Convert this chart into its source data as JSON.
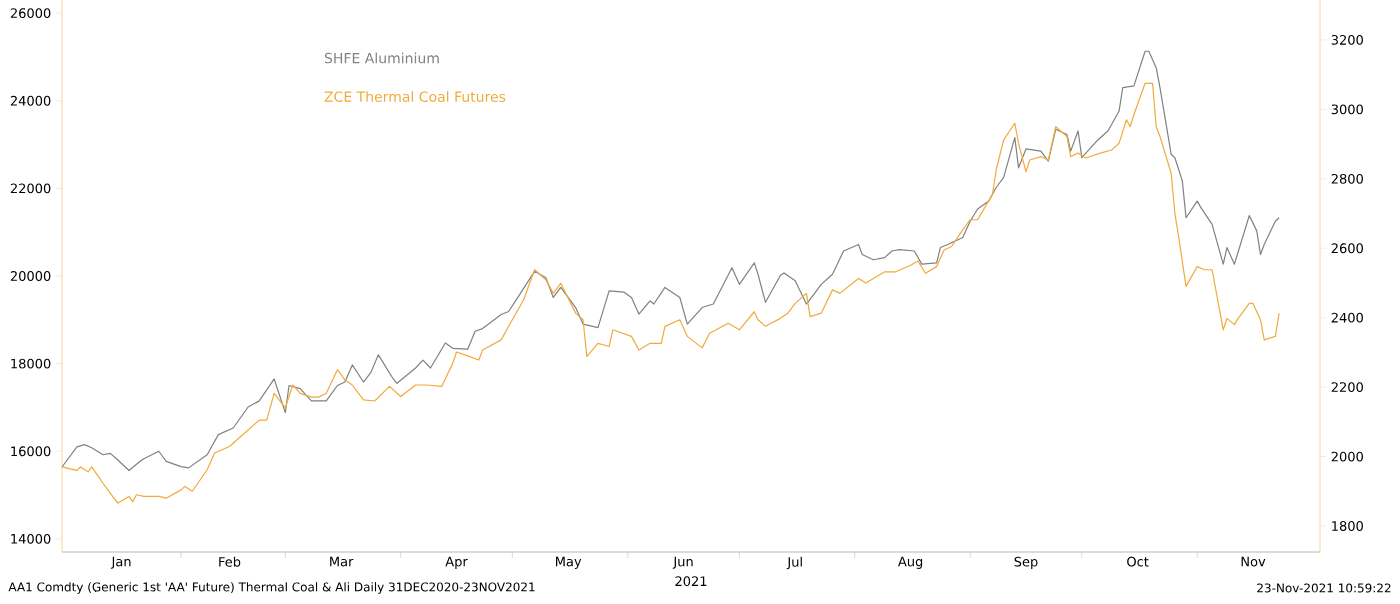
{
  "chart_data": {
    "type": "line",
    "xlabel": "2021",
    "annotations": [
      "AA1 Comdty (Generic 1st 'AA' Future) Thermal Coal & Ali  Daily 31DEC2020-23NOV2021",
      "23-Nov-2021 10:59:22"
    ],
    "legend": "top left",
    "marker": "none",
    "xlim": [
      "2020-12-31",
      "2021-12-04"
    ],
    "xticks": [
      {
        "value": "2021-01-16",
        "label": "Jan"
      },
      {
        "value": "2021-02-14",
        "label": "Feb"
      },
      {
        "value": "2021-03-16",
        "label": "Mar"
      },
      {
        "value": "2021-04-16",
        "label": "Apr"
      },
      {
        "value": "2021-05-16",
        "label": "May"
      },
      {
        "value": "2021-06-16",
        "label": "Jun"
      },
      {
        "value": "2021-07-16",
        "label": "Jul"
      },
      {
        "value": "2021-08-16",
        "label": "Aug"
      },
      {
        "value": "2021-09-16",
        "label": "Sep"
      },
      {
        "value": "2021-10-16",
        "label": "Oct"
      },
      {
        "value": "2021-11-16",
        "label": "Nov"
      },
      {
        "value": "2021-02-01",
        "label": null
      },
      {
        "value": "2021-03-01",
        "label": null
      },
      {
        "value": "2021-04-01",
        "label": null
      },
      {
        "value": "2021-05-01",
        "label": null
      },
      {
        "value": "2021-06-01",
        "label": null
      },
      {
        "value": "2021-07-01",
        "label": null
      },
      {
        "value": "2021-08-01",
        "label": null
      },
      {
        "value": "2021-09-01",
        "label": null
      },
      {
        "value": "2021-10-01",
        "label": null
      },
      {
        "value": "2021-11-01",
        "label": null
      }
    ],
    "ylim": [
      13700,
      26300
    ],
    "yticks": [
      14000,
      16000,
      18000,
      20000,
      22000,
      24000,
      26000
    ],
    "y2lim": [
      1725,
      3315
    ],
    "y2ticks": [
      1800,
      2000,
      2200,
      2400,
      2600,
      2800,
      3000,
      3200
    ],
    "series": [
      {
        "name": "SHFE Aluminium",
        "color": "#808080",
        "x": [
          "2020-12-31",
          "2021-01-04",
          "2021-01-06",
          "2021-01-08",
          "2021-01-11",
          "2021-01-13",
          "2021-01-15",
          "2021-01-18",
          "2021-01-21",
          "2021-01-22",
          "2021-01-26",
          "2021-01-28",
          "2021-02-01",
          "2021-02-03",
          "2021-02-08",
          "2021-02-11",
          "2021-02-15",
          "2021-02-19",
          "2021-02-22",
          "2021-02-26",
          "2021-03-01",
          "2021-03-02",
          "2021-03-05",
          "2021-03-08",
          "2021-03-09",
          "2021-03-12",
          "2021-03-15",
          "2021-03-17",
          "2021-03-19",
          "2021-03-22",
          "2021-03-24",
          "2021-03-26",
          "2021-03-30",
          "2021-03-31",
          "2021-04-05",
          "2021-04-07",
          "2021-04-09",
          "2021-04-13",
          "2021-04-15",
          "2021-04-19",
          "2021-04-21",
          "2021-04-23",
          "2021-04-28",
          "2021-04-30",
          "2021-05-03",
          "2021-05-07",
          "2021-05-10",
          "2021-05-12",
          "2021-05-14",
          "2021-05-18",
          "2021-05-20",
          "2021-05-24",
          "2021-05-27",
          "2021-05-31",
          "2021-06-02",
          "2021-06-04",
          "2021-06-07",
          "2021-06-08",
          "2021-06-11",
          "2021-06-15",
          "2021-06-17",
          "2021-06-21",
          "2021-06-24",
          "2021-06-29",
          "2021-07-01",
          "2021-07-05",
          "2021-07-06",
          "2021-07-08",
          "2021-07-12",
          "2021-07-13",
          "2021-07-16",
          "2021-07-19",
          "2021-07-21",
          "2021-07-23",
          "2021-07-26",
          "2021-07-29",
          "2021-08-02",
          "2021-08-03",
          "2021-08-06",
          "2021-08-09",
          "2021-08-11",
          "2021-08-13",
          "2021-08-17",
          "2021-08-19",
          "2021-08-23",
          "2021-08-24",
          "2021-08-26",
          "2021-08-30",
          "2021-09-01",
          "2021-09-03",
          "2021-09-06",
          "2021-09-08",
          "2021-09-10",
          "2021-09-13",
          "2021-09-14",
          "2021-09-16",
          "2021-09-20",
          "2021-09-22",
          "2021-09-24",
          "2021-09-27",
          "2021-09-28",
          "2021-09-30",
          "2021-10-01",
          "2021-10-05",
          "2021-10-08",
          "2021-10-11",
          "2021-10-12",
          "2021-10-15",
          "2021-10-18",
          "2021-10-19",
          "2021-10-21",
          "2021-10-22",
          "2021-10-25",
          "2021-10-26",
          "2021-10-28",
          "2021-10-29",
          "2021-11-01",
          "2021-11-02",
          "2021-11-05",
          "2021-11-08",
          "2021-11-09",
          "2021-11-11",
          "2021-11-15",
          "2021-11-17",
          "2021-11-18",
          "2021-11-19",
          "2021-11-22",
          "2021-11-23"
        ],
        "values": [
          15640,
          16100,
          16150,
          16080,
          15920,
          15950,
          15800,
          15560,
          15770,
          15830,
          16000,
          15770,
          15650,
          15620,
          15920,
          16380,
          16530,
          17010,
          17150,
          17650,
          16880,
          17500,
          17430,
          17150,
          17150,
          17150,
          17500,
          17580,
          17970,
          17580,
          17800,
          18200,
          17650,
          17550,
          17900,
          18080,
          17900,
          18470,
          18350,
          18330,
          18740,
          18800,
          19120,
          19190,
          19580,
          20110,
          19960,
          19510,
          19740,
          19280,
          18900,
          18820,
          19660,
          19630,
          19510,
          19130,
          19430,
          19360,
          19740,
          19510,
          18900,
          19280,
          19360,
          20190,
          19810,
          20300,
          20040,
          19400,
          20010,
          20070,
          19890,
          19360,
          19580,
          19810,
          20040,
          20570,
          20720,
          20490,
          20370,
          20420,
          20570,
          20600,
          20570,
          20270,
          20300,
          20650,
          20720,
          20880,
          21250,
          21530,
          21710,
          22020,
          22250,
          23160,
          22470,
          22900,
          22850,
          22620,
          23350,
          23230,
          22850,
          23310,
          22700,
          23080,
          23310,
          23760,
          24300,
          24340,
          25130,
          25130,
          24750,
          24300,
          22780,
          22700,
          22170,
          21330,
          21710,
          21560,
          21180,
          20270,
          20650,
          20270,
          21380,
          21030,
          20490,
          20720,
          21250,
          21330
        ]
      },
      {
        "name": "ZCE  Thermal Coal Futures",
        "color": "#f2a93b",
        "axis": "y2",
        "x": [
          "2020-12-31",
          "2021-01-04",
          "2021-01-05",
          "2021-01-07",
          "2021-01-08",
          "2021-01-11",
          "2021-01-13",
          "2021-01-15",
          "2021-01-18",
          "2021-01-19",
          "2021-01-20",
          "2021-01-22",
          "2021-01-26",
          "2021-01-28",
          "2021-02-01",
          "2021-02-02",
          "2021-02-04",
          "2021-02-08",
          "2021-02-10",
          "2021-02-14",
          "2021-02-18",
          "2021-02-22",
          "2021-02-24",
          "2021-02-26",
          "2021-03-01",
          "2021-03-03",
          "2021-03-05",
          "2021-03-08",
          "2021-03-10",
          "2021-03-12",
          "2021-03-15",
          "2021-03-17",
          "2021-03-19",
          "2021-03-22",
          "2021-03-25",
          "2021-03-29",
          "2021-04-01",
          "2021-04-05",
          "2021-04-08",
          "2021-04-12",
          "2021-04-15",
          "2021-04-16",
          "2021-04-19",
          "2021-04-22",
          "2021-04-23",
          "2021-04-28",
          "2021-04-30",
          "2021-05-04",
          "2021-05-07",
          "2021-05-10",
          "2021-05-12",
          "2021-05-14",
          "2021-05-18",
          "2021-05-20",
          "2021-05-21",
          "2021-05-24",
          "2021-05-27",
          "2021-05-28",
          "2021-06-02",
          "2021-06-04",
          "2021-06-07",
          "2021-06-10",
          "2021-06-11",
          "2021-06-15",
          "2021-06-17",
          "2021-06-21",
          "2021-06-23",
          "2021-06-28",
          "2021-07-01",
          "2021-07-05",
          "2021-07-06",
          "2021-07-08",
          "2021-07-12",
          "2021-07-14",
          "2021-07-16",
          "2021-07-19",
          "2021-07-20",
          "2021-07-23",
          "2021-07-26",
          "2021-07-28",
          "2021-08-02",
          "2021-08-04",
          "2021-08-06",
          "2021-08-09",
          "2021-08-12",
          "2021-08-16",
          "2021-08-18",
          "2021-08-20",
          "2021-08-23",
          "2021-08-25",
          "2021-08-27",
          "2021-08-30",
          "2021-09-01",
          "2021-09-03",
          "2021-09-07",
          "2021-09-08",
          "2021-09-10",
          "2021-09-13",
          "2021-09-14",
          "2021-09-16",
          "2021-09-17",
          "2021-09-20",
          "2021-09-22",
          "2021-09-24",
          "2021-09-27",
          "2021-09-28",
          "2021-09-30",
          "2021-10-02",
          "2021-10-06",
          "2021-10-09",
          "2021-10-11",
          "2021-10-13",
          "2021-10-14",
          "2021-10-15",
          "2021-10-18",
          "2021-10-20",
          "2021-10-21",
          "2021-10-22",
          "2021-10-25",
          "2021-10-26",
          "2021-10-27",
          "2021-10-29",
          "2021-11-01",
          "2021-11-03",
          "2021-11-05",
          "2021-11-08",
          "2021-11-09",
          "2021-11-11",
          "2021-11-12",
          "2021-11-15",
          "2021-11-16",
          "2021-11-18",
          "2021-11-19",
          "2021-11-22",
          "2021-11-23"
        ],
        "values": [
          1970,
          1960,
          1970,
          1956,
          1970,
          1923,
          1894,
          1866,
          1885,
          1870,
          1890,
          1885,
          1885,
          1880,
          1904,
          1914,
          1900,
          1962,
          2010,
          2029,
          2067,
          2105,
          2105,
          2182,
          2140,
          2206,
          2182,
          2171,
          2171,
          2182,
          2250,
          2221,
          2206,
          2163,
          2160,
          2202,
          2173,
          2206,
          2206,
          2202,
          2269,
          2301,
          2290,
          2278,
          2307,
          2336,
          2375,
          2451,
          2538,
          2509,
          2470,
          2499,
          2413,
          2394,
          2288,
          2326,
          2317,
          2365,
          2346,
          2307,
          2326,
          2326,
          2375,
          2394,
          2346,
          2313,
          2355,
          2384,
          2365,
          2417,
          2394,
          2375,
          2398,
          2413,
          2441,
          2470,
          2403,
          2413,
          2480,
          2470,
          2513,
          2500,
          2513,
          2532,
          2532,
          2551,
          2563,
          2528,
          2547,
          2595,
          2605,
          2653,
          2682,
          2682,
          2755,
          2826,
          2912,
          2960,
          2902,
          2820,
          2854,
          2864,
          2854,
          2950,
          2922,
          2864,
          2874,
          2860,
          2874,
          2883,
          2902,
          2970,
          2950,
          2985,
          3075,
          3075,
          2950,
          2922,
          2816,
          2700,
          2634,
          2490,
          2547,
          2538,
          2538,
          2365,
          2398,
          2380,
          2398,
          2441,
          2441,
          2394,
          2336,
          2346,
          2413
        ]
      }
    ]
  }
}
